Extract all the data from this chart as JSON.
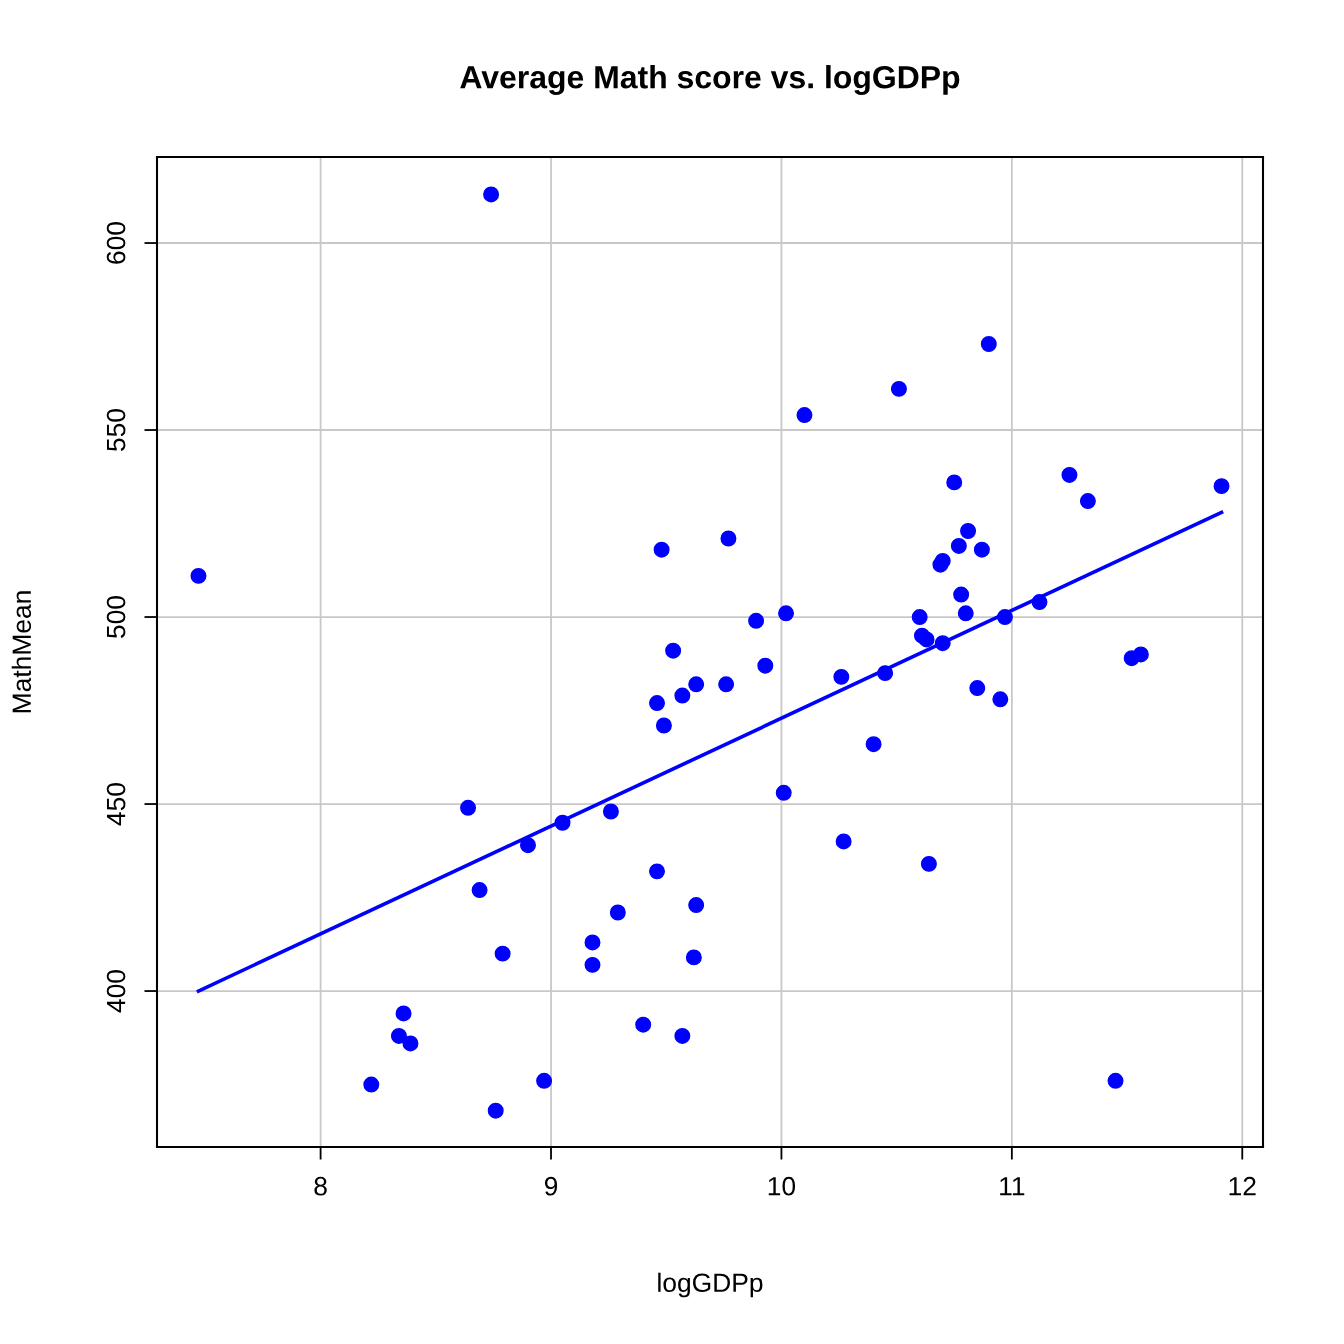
{
  "chart_data": {
    "type": "scatter",
    "title": "Average Math score vs. logGDPp",
    "xlabel": "logGDPp",
    "ylabel": "MathMean",
    "xlim": [
      7.29,
      12.09
    ],
    "ylim": [
      358.3,
      623
    ],
    "xticks": [
      8,
      9,
      10,
      11,
      12
    ],
    "yticks": [
      400,
      450,
      500,
      550,
      600
    ],
    "grid": true,
    "marker": "circle",
    "series": [
      {
        "color": "#0000ff",
        "x": [
          7.47,
          8.74,
          8.22,
          8.34,
          8.36,
          8.39,
          8.64,
          8.69,
          8.76,
          8.79,
          8.9,
          8.97,
          9.05,
          9.18,
          9.18,
          9.26,
          9.29,
          9.4,
          9.46,
          9.46,
          9.48,
          9.49,
          9.53,
          9.57,
          9.57,
          9.62,
          9.63,
          9.63,
          9.76,
          9.77,
          9.89,
          9.93,
          10.01,
          10.02,
          10.1,
          10.26,
          10.27,
          10.4,
          10.45,
          10.51,
          10.6,
          10.61,
          10.63,
          10.64,
          10.69,
          10.7,
          10.7,
          10.75,
          10.77,
          10.78,
          10.8,
          10.81,
          10.85,
          10.87,
          10.9,
          10.95,
          10.97,
          11.12,
          11.25,
          11.33,
          11.45,
          11.52,
          11.56,
          11.91
        ],
        "values": [
          511,
          613,
          375,
          388,
          394,
          386,
          449,
          427,
          368,
          410,
          439,
          376,
          445,
          413,
          407,
          448,
          421,
          391,
          477,
          432,
          518,
          471,
          491,
          388,
          479,
          409,
          482,
          423,
          482,
          521,
          499,
          487,
          453,
          501,
          554,
          484,
          440,
          466,
          485,
          561,
          500,
          495,
          494,
          434,
          514,
          493,
          515,
          536,
          519,
          506,
          501,
          523,
          481,
          518,
          573,
          478,
          500,
          504,
          538,
          531,
          376,
          489,
          490,
          535
        ]
      },
      {
        "type": "line",
        "color": "#0000ff",
        "marker": "none",
        "x": [
          7.47,
          11.91
        ],
        "values": [
          400,
          528
        ]
      }
    ]
  }
}
